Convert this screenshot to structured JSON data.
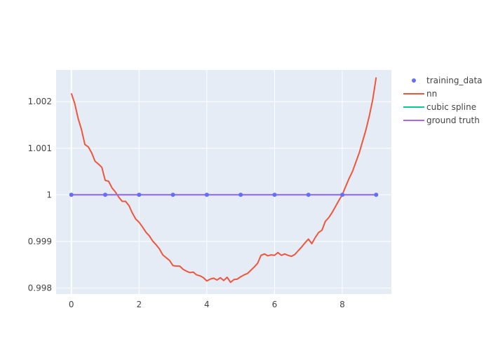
{
  "chart_data": {
    "type": "line",
    "title": "",
    "xlabel": "",
    "ylabel": "",
    "xlim": [
      -0.45,
      9.45
    ],
    "ylim": [
      0.99787,
      1.00268
    ],
    "x_ticks": [
      0,
      2,
      4,
      6,
      8
    ],
    "y_ticks": [
      0.998,
      0.999,
      1,
      1.001,
      1.002
    ],
    "y_tick_labels": [
      "0.998",
      "0.999",
      "1",
      "1.001",
      "1.002"
    ],
    "grid": true,
    "legend_position": "top-right",
    "series": [
      {
        "name": "training_data",
        "mode": "markers",
        "color": "#636efa",
        "x": [
          0,
          1,
          2,
          3,
          4,
          5,
          6,
          7,
          8,
          9
        ],
        "y": [
          1,
          1,
          1,
          1,
          1,
          1,
          1,
          1,
          1,
          1
        ]
      },
      {
        "name": "nn",
        "mode": "lines",
        "color": "#ef553b",
        "x": [
          0.0,
          0.1,
          0.2,
          0.3,
          0.4,
          0.5,
          0.6,
          0.7,
          0.8,
          0.9,
          1.0,
          1.1,
          1.2,
          1.3,
          1.4,
          1.5,
          1.6,
          1.7,
          1.8,
          1.9,
          2.0,
          2.1,
          2.2,
          2.3,
          2.4,
          2.5,
          2.6,
          2.7,
          2.8,
          2.9,
          3.0,
          3.1,
          3.2,
          3.3,
          3.4,
          3.5,
          3.6,
          3.7,
          3.8,
          3.9,
          4.0,
          4.1,
          4.2,
          4.3,
          4.4,
          4.5,
          4.6,
          4.7,
          4.8,
          4.9,
          5.0,
          5.1,
          5.2,
          5.3,
          5.4,
          5.5,
          5.6,
          5.7,
          5.8,
          5.9,
          6.0,
          6.1,
          6.2,
          6.3,
          6.4,
          6.5,
          6.6,
          6.7,
          6.8,
          6.9,
          7.0,
          7.1,
          7.2,
          7.3,
          7.4,
          7.5,
          7.6,
          7.7,
          7.8,
          7.9,
          8.0,
          8.1,
          8.2,
          8.3,
          8.4,
          8.5,
          8.6,
          8.7,
          8.8,
          8.9,
          9.0
        ],
        "y": [
          1.00218,
          1.00196,
          1.00164,
          1.0014,
          1.00108,
          1.00103,
          1.0009,
          1.00072,
          1.00066,
          1.00059,
          1.00031,
          1.00029,
          1.00015,
          1.00006,
          0.99995,
          0.99986,
          0.99986,
          0.99977,
          0.99961,
          0.99948,
          0.99941,
          0.99931,
          0.9992,
          0.99912,
          0.99901,
          0.99893,
          0.99884,
          0.99871,
          0.99865,
          0.99859,
          0.99848,
          0.99847,
          0.99847,
          0.9984,
          0.99836,
          0.99833,
          0.99834,
          0.99828,
          0.99826,
          0.99822,
          0.99815,
          0.99819,
          0.99821,
          0.99817,
          0.99822,
          0.99816,
          0.99823,
          0.99812,
          0.99818,
          0.99819,
          0.99824,
          0.99828,
          0.99831,
          0.99838,
          0.99845,
          0.99853,
          0.9987,
          0.99873,
          0.99869,
          0.99871,
          0.9987,
          0.99876,
          0.9987,
          0.99873,
          0.9987,
          0.99868,
          0.99872,
          0.9988,
          0.99888,
          0.99897,
          0.99905,
          0.99895,
          0.99908,
          0.99919,
          0.99924,
          0.99943,
          0.99951,
          0.99962,
          0.99975,
          0.99988,
          1.0,
          1.00018,
          1.00035,
          1.0005,
          1.0007,
          1.0009,
          1.00115,
          1.0014,
          1.0017,
          1.00205,
          1.00252
        ]
      },
      {
        "name": "cubic spline",
        "mode": "lines",
        "color": "#00cc96",
        "x": [
          0,
          9
        ],
        "y": [
          1,
          1
        ]
      },
      {
        "name": "ground truth",
        "mode": "lines",
        "color": "#ab63fa",
        "x": [
          0,
          9
        ],
        "y": [
          1,
          1
        ]
      }
    ]
  }
}
